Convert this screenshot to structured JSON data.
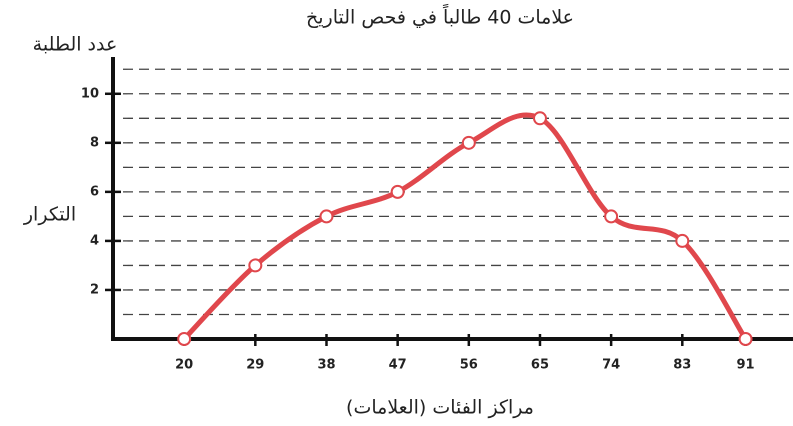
{
  "chart_data": {
    "type": "line",
    "title": "علامات 40 طالباً في فحص التاريخ",
    "y_axis_title": "عدد الطلبة",
    "y_label": "التكرار",
    "x_label": "مراكز الفئات (العلامات)",
    "x": [
      20,
      29,
      38,
      47,
      56,
      65,
      74,
      83,
      91
    ],
    "series": [
      {
        "color": "#e0474c",
        "values": [
          0,
          3,
          5,
          6,
          8,
          9,
          5,
          4,
          0
        ]
      }
    ],
    "xlim": [
      11,
      97
    ],
    "xticks": [
      20,
      29,
      38,
      47,
      56,
      65,
      74,
      83,
      91
    ],
    "ylim": [
      0,
      11.5
    ],
    "yticks": [
      2,
      4,
      6,
      8,
      10
    ],
    "grid_lines": [
      1,
      2,
      3,
      4,
      5,
      6,
      7,
      8,
      9,
      10,
      11
    ],
    "smooth": true
  }
}
